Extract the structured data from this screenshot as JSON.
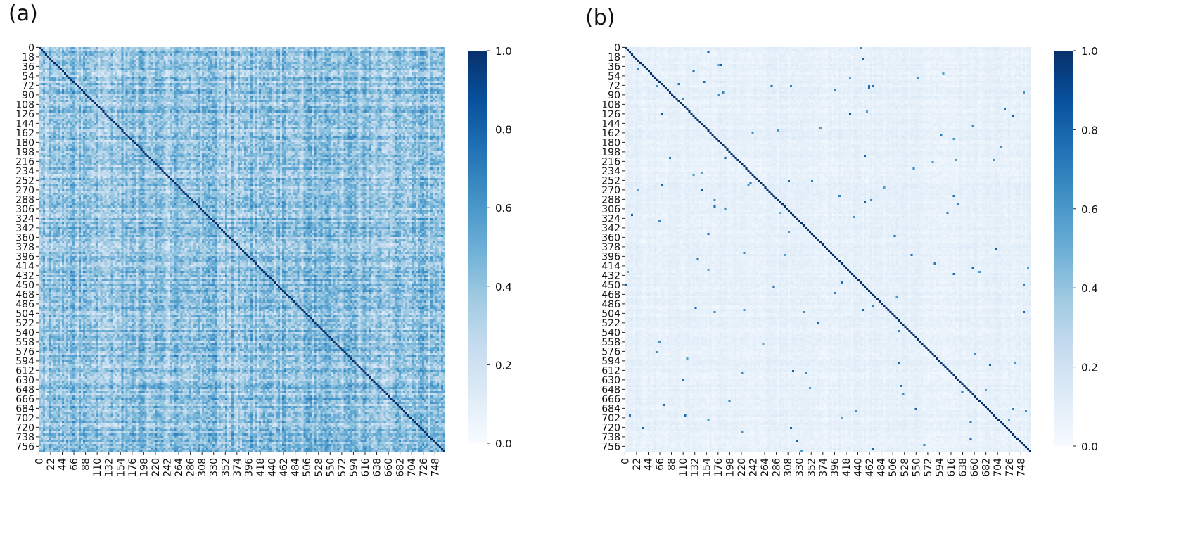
{
  "chart_data": [
    {
      "panel": "(a)",
      "type": "heatmap",
      "n": 768,
      "x_ticks": [
        "0",
        "22",
        "44",
        "66",
        "88",
        "110",
        "132",
        "154",
        "176",
        "198",
        "220",
        "242",
        "264",
        "286",
        "308",
        "330",
        "352",
        "374",
        "396",
        "418",
        "440",
        "462",
        "484",
        "506",
        "528",
        "550",
        "572",
        "594",
        "616",
        "638",
        "660",
        "682",
        "704",
        "726",
        "748"
      ],
      "y_ticks": [
        "0",
        "18",
        "36",
        "54",
        "72",
        "90",
        "108",
        "126",
        "144",
        "162",
        "180",
        "198",
        "216",
        "234",
        "252",
        "270",
        "288",
        "306",
        "324",
        "342",
        "360",
        "378",
        "396",
        "414",
        "432",
        "450",
        "468",
        "486",
        "504",
        "522",
        "540",
        "558",
        "576",
        "594",
        "612",
        "630",
        "648",
        "666",
        "684",
        "702",
        "720",
        "738",
        "756"
      ],
      "diagonal_value": 1.0,
      "off_diagonal_typical": 0.4,
      "colorbar": {
        "min": 0.0,
        "max": 1.0,
        "ticks": [
          "0.0",
          "0.2",
          "0.4",
          "0.6",
          "0.8",
          "1.0"
        ],
        "colormap": "Blues"
      }
    },
    {
      "panel": "(b)",
      "type": "heatmap",
      "n": 768,
      "x_ticks": [
        "0",
        "22",
        "44",
        "66",
        "88",
        "110",
        "132",
        "154",
        "176",
        "198",
        "220",
        "242",
        "264",
        "286",
        "308",
        "330",
        "352",
        "374",
        "396",
        "418",
        "440",
        "462",
        "484",
        "506",
        "528",
        "550",
        "572",
        "594",
        "616",
        "638",
        "660",
        "682",
        "704",
        "726",
        "748"
      ],
      "y_ticks": [
        "0",
        "18",
        "36",
        "54",
        "72",
        "90",
        "108",
        "126",
        "144",
        "162",
        "180",
        "198",
        "216",
        "234",
        "252",
        "270",
        "288",
        "306",
        "324",
        "342",
        "360",
        "378",
        "396",
        "414",
        "432",
        "450",
        "468",
        "486",
        "504",
        "522",
        "540",
        "558",
        "576",
        "594",
        "612",
        "630",
        "648",
        "666",
        "684",
        "702",
        "720",
        "738",
        "756"
      ],
      "diagonal_value": 1.0,
      "off_diagonal_typical": 0.08,
      "colorbar": {
        "min": 0.0,
        "max": 1.0,
        "ticks": [
          "0.0",
          "0.2",
          "0.4",
          "0.6",
          "0.8",
          "1.0"
        ],
        "colormap": "Blues"
      }
    }
  ],
  "colors": {
    "blues": [
      "#f7fbff",
      "#deebf7",
      "#c6dbef",
      "#9ecae1",
      "#6baed6",
      "#4292c6",
      "#2171b5",
      "#08519c",
      "#08306b"
    ]
  }
}
